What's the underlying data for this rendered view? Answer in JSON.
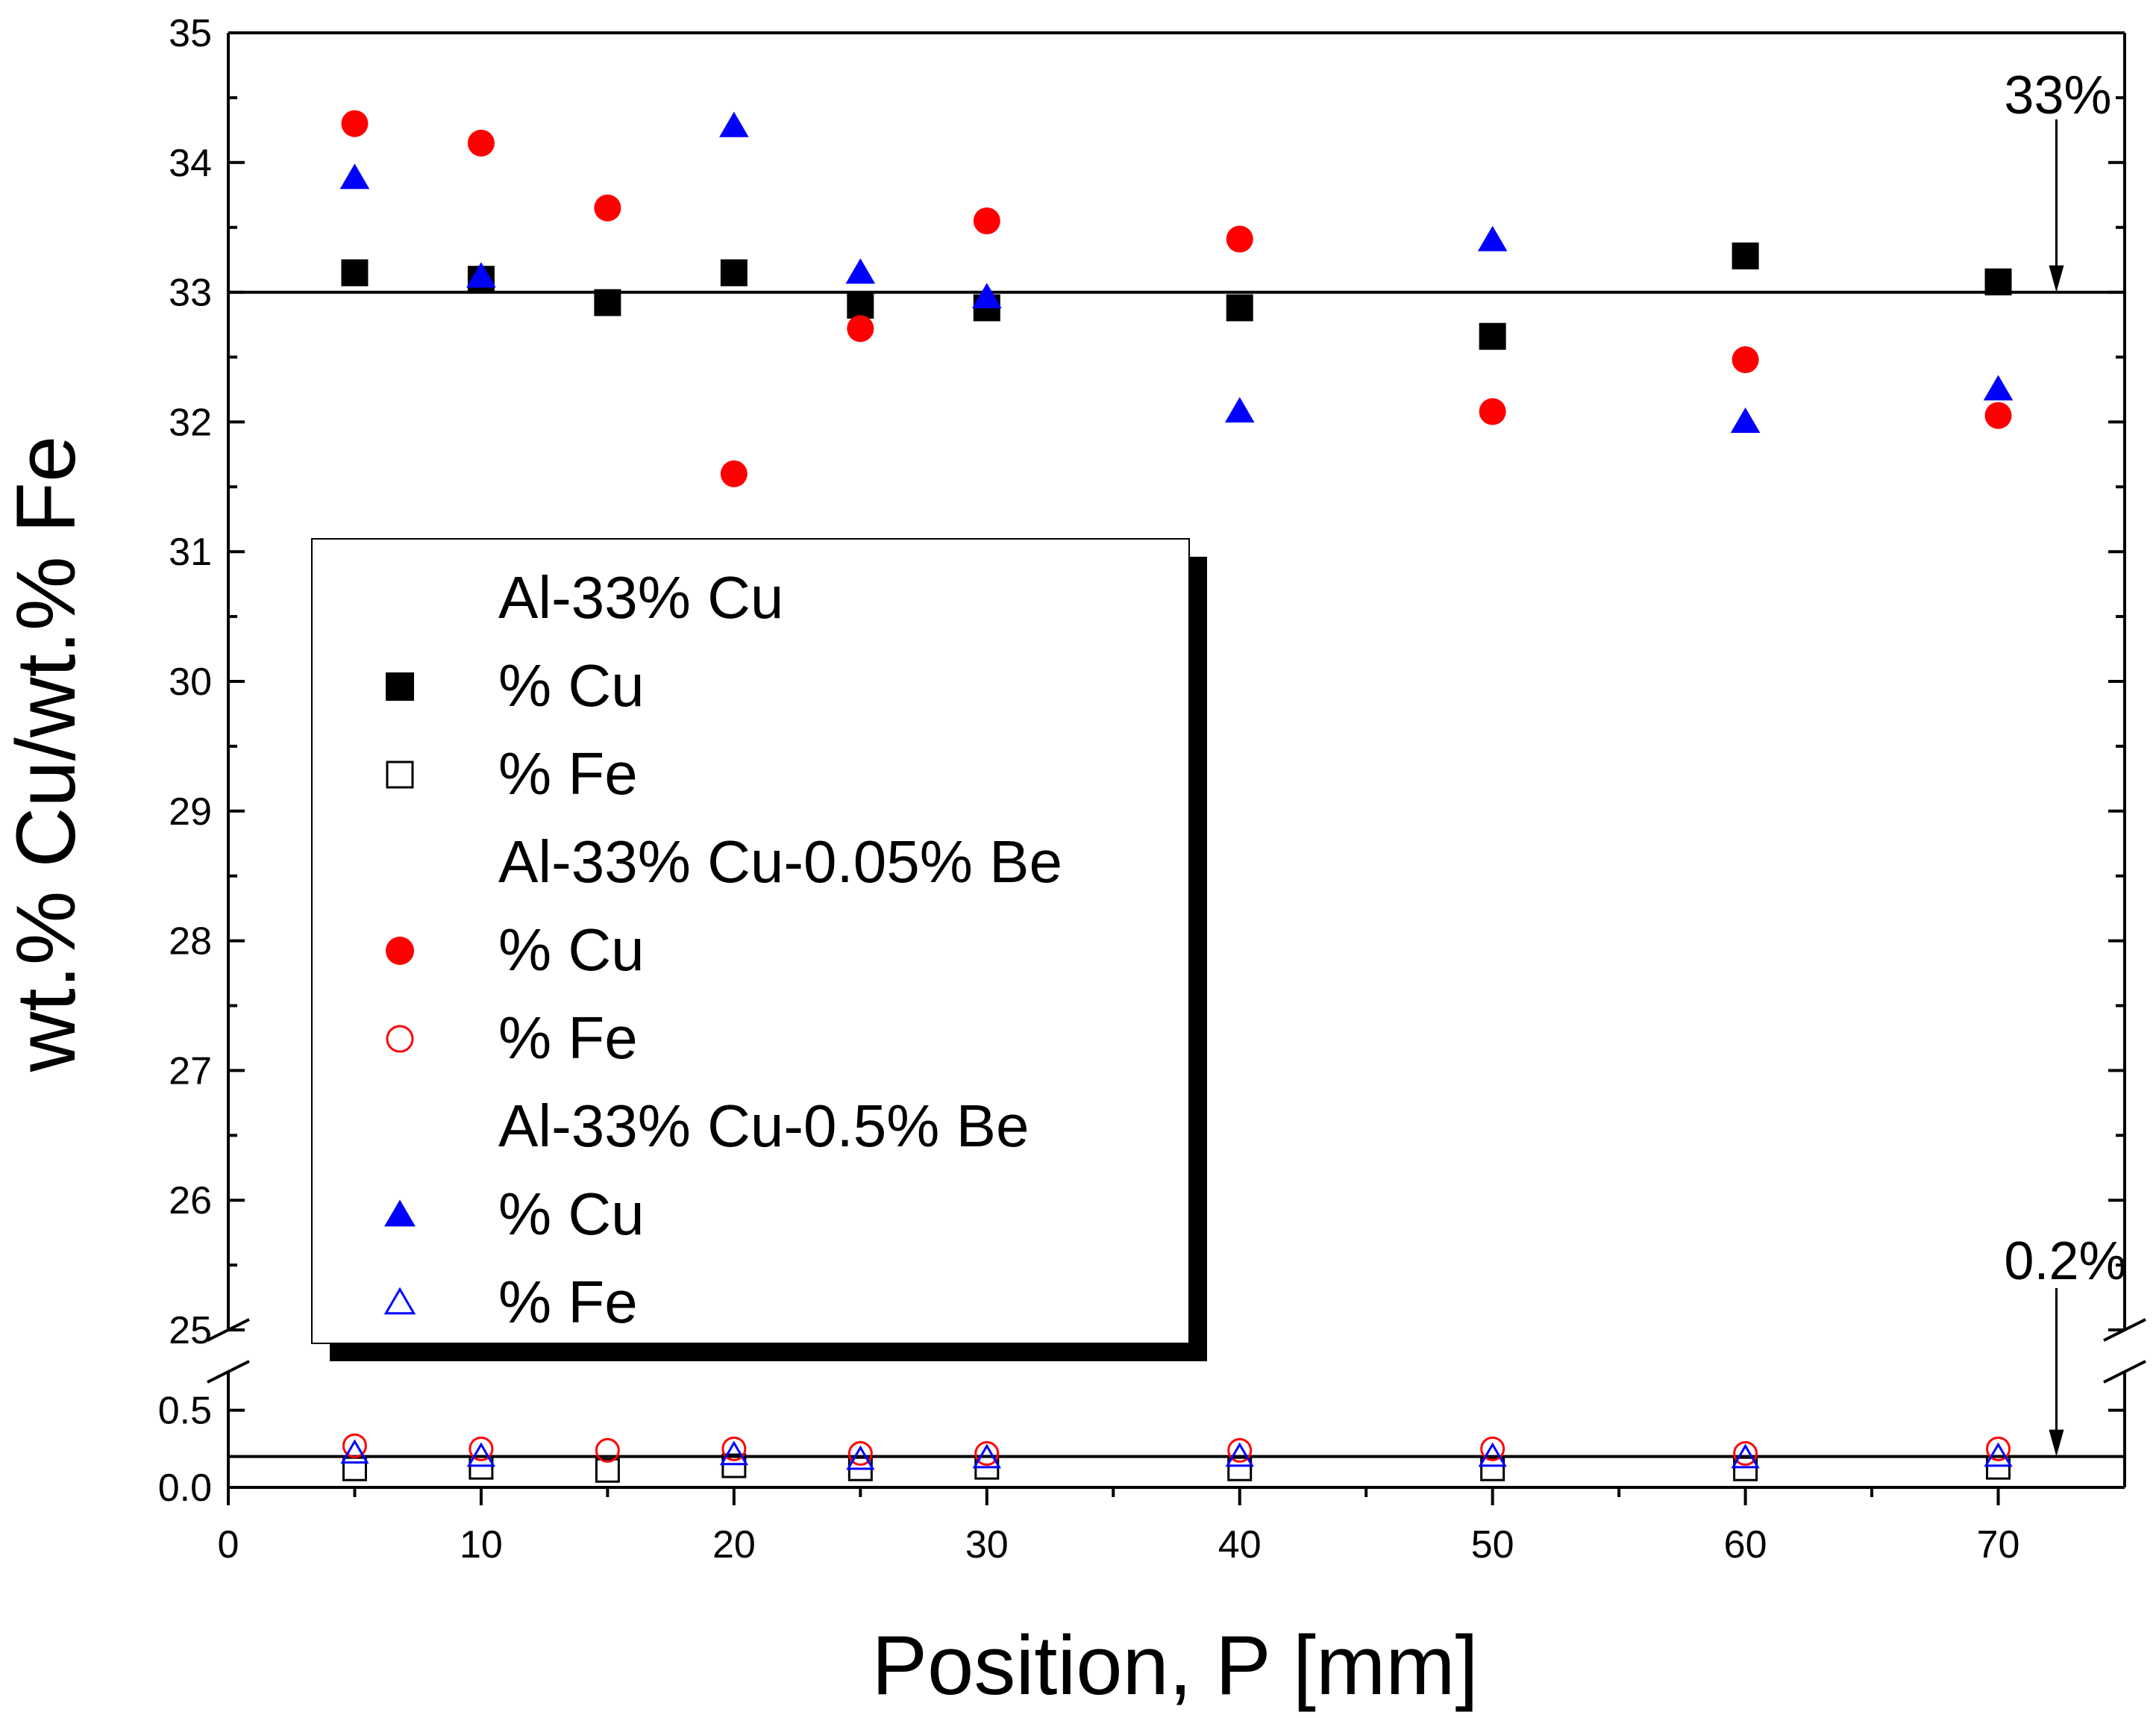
{
  "chart_data": {
    "type": "scatter",
    "title": "",
    "xlabel": "Position, P [mm]",
    "ylabel": "wt.% Cu/wt.% Fe",
    "xlim": [
      0,
      75
    ],
    "x_ticks": [
      0,
      10,
      20,
      30,
      40,
      50,
      60,
      70
    ],
    "y_break": {
      "lower_range": [
        0,
        0.75
      ],
      "upper_range": [
        25,
        35
      ]
    },
    "y_ticks_upper": [
      "25",
      "26",
      "27",
      "28",
      "29",
      "30",
      "31",
      "32",
      "33",
      "34",
      "35"
    ],
    "y_ticks_lower": [
      "0.0",
      "0.5"
    ],
    "reference_lines": [
      {
        "y": 33,
        "label": "33%"
      },
      {
        "y": 0.2,
        "label": "0.2%"
      }
    ],
    "legend_groups": [
      {
        "title": "Al-33% Cu",
        "entries": [
          "% Cu",
          "% Fe"
        ]
      },
      {
        "title": "Al-33% Cu-0.05% Be",
        "entries": [
          "% Cu",
          "% Fe"
        ]
      },
      {
        "title": "Al-33% Cu-0.5% Be",
        "entries": [
          "% Cu",
          "% Fe"
        ]
      }
    ],
    "series": [
      {
        "name": "Al-33% Cu % Cu",
        "marker": "square",
        "filled": true,
        "color": "#000000",
        "x": [
          5,
          10,
          15,
          20,
          25,
          30,
          40,
          50,
          60,
          70
        ],
        "y": [
          33.15,
          33.1,
          32.92,
          33.15,
          32.9,
          32.88,
          32.88,
          32.66,
          33.28,
          33.08
        ]
      },
      {
        "name": "Al-33% Cu % Fe",
        "marker": "square",
        "filled": false,
        "color": "#000000",
        "x": [
          5,
          10,
          15,
          20,
          25,
          30,
          40,
          50,
          60,
          70
        ],
        "y": [
          0.12,
          0.13,
          0.11,
          0.14,
          0.12,
          0.13,
          0.12,
          0.12,
          0.12,
          0.13
        ]
      },
      {
        "name": "Al-33% Cu-0.05% Be % Cu",
        "marker": "circle",
        "filled": true,
        "color": "#ff0000",
        "x": [
          5,
          10,
          15,
          20,
          25,
          30,
          40,
          50,
          60,
          70
        ],
        "y": [
          34.3,
          34.15,
          33.65,
          31.6,
          32.72,
          33.55,
          33.41,
          32.08,
          32.48,
          32.05
        ]
      },
      {
        "name": "Al-33% Cu-0.05% Be % Fe",
        "marker": "circle",
        "filled": false,
        "color": "#ff0000",
        "x": [
          5,
          10,
          15,
          20,
          25,
          30,
          40,
          50,
          60,
          70
        ],
        "y": [
          0.27,
          0.25,
          0.24,
          0.25,
          0.22,
          0.22,
          0.24,
          0.25,
          0.22,
          0.25
        ]
      },
      {
        "name": "Al-33% Cu-0.5% Be % Cu",
        "marker": "triangle",
        "filled": true,
        "color": "#0000ff",
        "x": [
          5,
          10,
          20,
          25,
          30,
          40,
          50,
          60,
          70
        ],
        "y": [
          33.88,
          33.12,
          34.28,
          33.15,
          32.96,
          32.08,
          33.4,
          32.0,
          32.25
        ]
      },
      {
        "name": "Al-33% Cu-0.5% Be % Fe",
        "marker": "triangle",
        "filled": false,
        "color": "#0000ff",
        "x": [
          5,
          10,
          20,
          25,
          30,
          40,
          50,
          60,
          70
        ],
        "y": [
          0.22,
          0.2,
          0.21,
          0.18,
          0.19,
          0.2,
          0.2,
          0.19,
          0.2
        ]
      }
    ]
  }
}
